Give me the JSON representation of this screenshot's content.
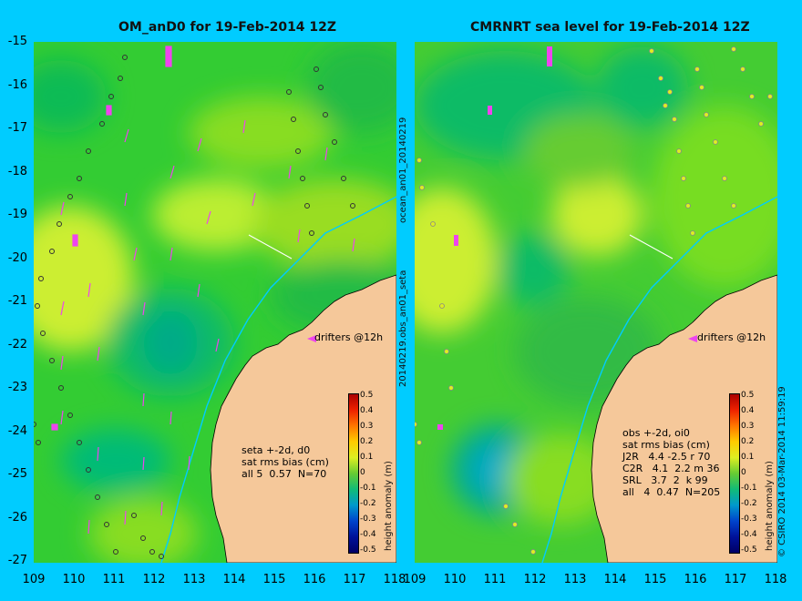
{
  "left_panel": {
    "title": "OM_anD0 for 19-Feb-2014 12Z",
    "drifter_label": "drifters @12h",
    "stats_lines": [
      "seta +-2d, d0",
      "sat rms bias (cm)",
      "all 5  0.57  N=70"
    ]
  },
  "right_panel": {
    "title": "CMRNRT sea level  for 19-Feb-2014 12Z",
    "drifter_label": "drifters @12h",
    "stats_lines": [
      "obs +-2d, oi0",
      "sat rms bias (cm)",
      "J2R   4.4 -2.5 r 70",
      "C2R   4.1  2.2 m 36",
      "SRL   3.7  2  k 99",
      "all   4  0.47  N=205"
    ]
  },
  "y_ticks": [
    "-15",
    "-16",
    "-17",
    "-18",
    "-19",
    "-20",
    "-21",
    "-22",
    "-23",
    "-24",
    "-25",
    "-26",
    "-27"
  ],
  "x_ticks": [
    "109",
    "110",
    "111",
    "112",
    "113",
    "114",
    "115",
    "116",
    "117",
    "118"
  ],
  "colorbar": {
    "label": "height anomaly (m)",
    "ticks": [
      "0.5",
      "0.4",
      "0.3",
      "0.2",
      "0.1",
      "0",
      "-0.1",
      "-0.2",
      "-0.3",
      "-0.4",
      "-0.5"
    ]
  },
  "side_text": {
    "file_top": "ocean_an01_20140219",
    "file_bottom": "20140219.obs_an01_seta",
    "credit": "© CSIRO 2014   03-Mar-2014 11:59:19"
  },
  "colors": {
    "background": "#00ccff",
    "land": "#f5c89a",
    "sea_base": "#33cc33",
    "coastline_water": "#00ccff"
  }
}
